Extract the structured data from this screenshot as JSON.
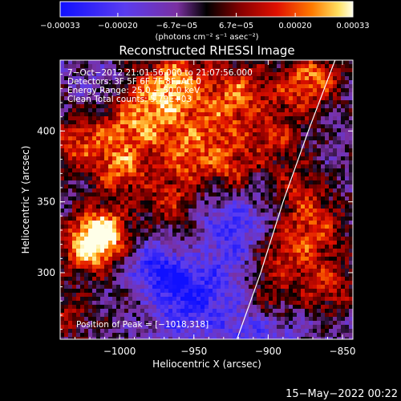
{
  "chart_data": {
    "type": "heatmap",
    "title": "Reconstructed RHESSI Image",
    "xlabel": "Heliocentric X (arcsec)",
    "ylabel": "Heliocentric Y (arcsec)",
    "xlim": [
      -1040,
      -843
    ],
    "ylim": [
      253,
      450
    ],
    "x_ticks": [
      -1000,
      -950,
      -900,
      -850
    ],
    "x_tick_labels": [
      "−1000",
      "−950",
      "−900",
      "−850"
    ],
    "y_ticks": [
      300,
      350,
      400
    ],
    "y_tick_labels": [
      "300",
      "350",
      "400"
    ],
    "colorbar": {
      "ticks": [
        -0.00033,
        -0.0002,
        -6.7e-05,
        6.7e-05,
        0.0002,
        0.00033
      ],
      "tick_labels": [
        "−0.00033",
        "−0.00020",
        "−6.7e−05",
        "6.7e−05",
        "0.00020",
        "0.00033"
      ],
      "min": -0.00033,
      "max": 0.00033,
      "unit_text": "(photons cm⁻² s⁻¹ asec⁻²)"
    },
    "annotations": [
      "7−Oct−2012 21:01:56.000 to 21:07:56.000",
      "Detectors: 3F 5F 6F 7F 8F, Att 0",
      "Energy Range: 25.0 − 50.0 keV",
      "Clean     Total counts: 5.79E+03"
    ],
    "peak_label": "Position of Peak = [−1018,318]",
    "peak": [
      -1018,
      318
    ],
    "limb": [
      [
        -921,
        253
      ],
      [
        -905,
        300
      ],
      [
        -890,
        350
      ],
      [
        -873,
        400
      ],
      [
        -855,
        450
      ]
    ],
    "grid": false
  },
  "footer": {
    "date": "15−May−2022 00:22"
  },
  "colors": {
    "background": "#000000",
    "text": "#ffffff",
    "axes": "#ffffff"
  }
}
